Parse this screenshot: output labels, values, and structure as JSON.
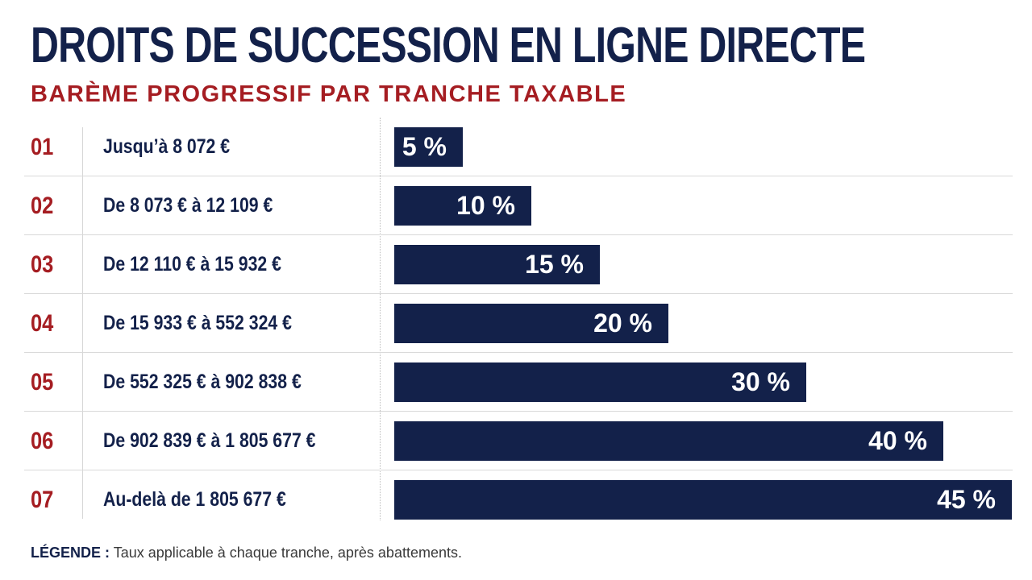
{
  "title": "DROITS DE SUCCESSION EN LIGNE DIRECTE",
  "subtitle": "BARÈME PROGRESSIF PAR TRANCHE TAXABLE",
  "legend": {
    "key": "LÉGENDE :",
    "text": "Taux applicable à chaque tranche, après abattements."
  },
  "colors": {
    "navy": "#13214a",
    "accent_red": "#a51d22"
  },
  "chart_data": {
    "type": "bar",
    "orientation": "horizontal",
    "title": "DROITS DE SUCCESSION EN LIGNE DIRECTE",
    "subtitle": "BARÈME PROGRESSIF PAR TRANCHE TAXABLE",
    "unit": "%",
    "xlim": [
      0,
      45
    ],
    "rows": [
      {
        "num": "01",
        "label": "Jusqu’à 8 072 €",
        "value": 5,
        "value_label": "5 %"
      },
      {
        "num": "02",
        "label": "De 8 073 € à 12 109 €",
        "value": 10,
        "value_label": "10 %"
      },
      {
        "num": "03",
        "label": "De 12 110 € à 15 932 €",
        "value": 15,
        "value_label": "15 %"
      },
      {
        "num": "04",
        "label": "De 15 933 € à 552 324 €",
        "value": 20,
        "value_label": "20 %"
      },
      {
        "num": "05",
        "label": "De 552 325 € à 902 838 €",
        "value": 30,
        "value_label": "30 %"
      },
      {
        "num": "06",
        "label": "De 902 839 € à 1 805 677 €",
        "value": 40,
        "value_label": "40 %"
      },
      {
        "num": "07",
        "label": "Au-delà de 1 805 677 €",
        "value": 45,
        "value_label": "45 %"
      }
    ]
  }
}
